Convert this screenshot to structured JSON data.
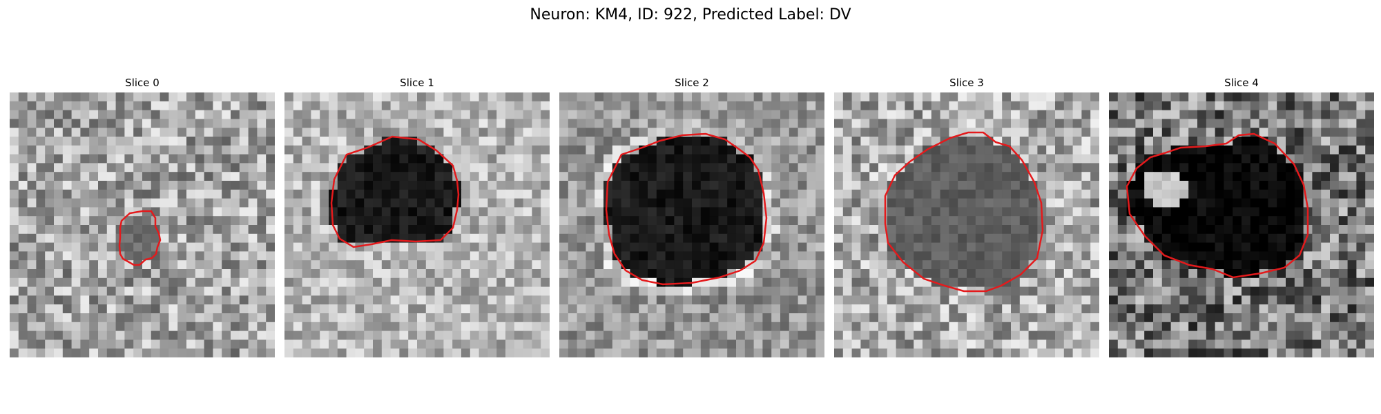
{
  "figure": {
    "title": "Neuron: KM4, ID: 922, Predicted Label: DV"
  },
  "colors": {
    "contour": "#e41a1c",
    "background": "#ffffff"
  },
  "panels": [
    {
      "title": "Slice 0",
      "description": "grayscale microscopy crop, small red contour around a darker roundish region"
    },
    {
      "title": "Slice 1",
      "description": "grayscale microscopy crop, large dark roundish body outlined in red"
    },
    {
      "title": "Slice 2",
      "description": "grayscale microscopy crop, large dark body with a lighter ring, outlined in red"
    },
    {
      "title": "Slice 3",
      "description": "grayscale microscopy crop, medium-gray textured region outlined in red"
    },
    {
      "title": "Slice 4",
      "description": "grayscale microscopy crop, very dark body with a lighter blob at upper-left, outlined in red"
    }
  ]
}
